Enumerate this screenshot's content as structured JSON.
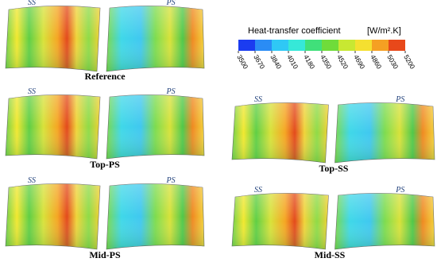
{
  "colorbar": {
    "title": "Heat-transfer coefficient",
    "unit": "[W/m².K]",
    "ticks": [
      3500,
      3670,
      3840,
      4010,
      4180,
      4350,
      4520,
      4690,
      4860,
      5030,
      5200
    ]
  },
  "panels": [
    {
      "label": "Reference",
      "ss": "SS",
      "ps": "PS"
    },
    {
      "label": "Top-PS",
      "ss": "SS",
      "ps": "PS"
    },
    {
      "label": "Mid-PS",
      "ss": "SS",
      "ps": "PS"
    },
    {
      "label": "Top-SS",
      "ss": "SS",
      "ps": "PS"
    },
    {
      "label": "Mid-SS",
      "ss": "SS",
      "ps": "PS"
    }
  ]
}
